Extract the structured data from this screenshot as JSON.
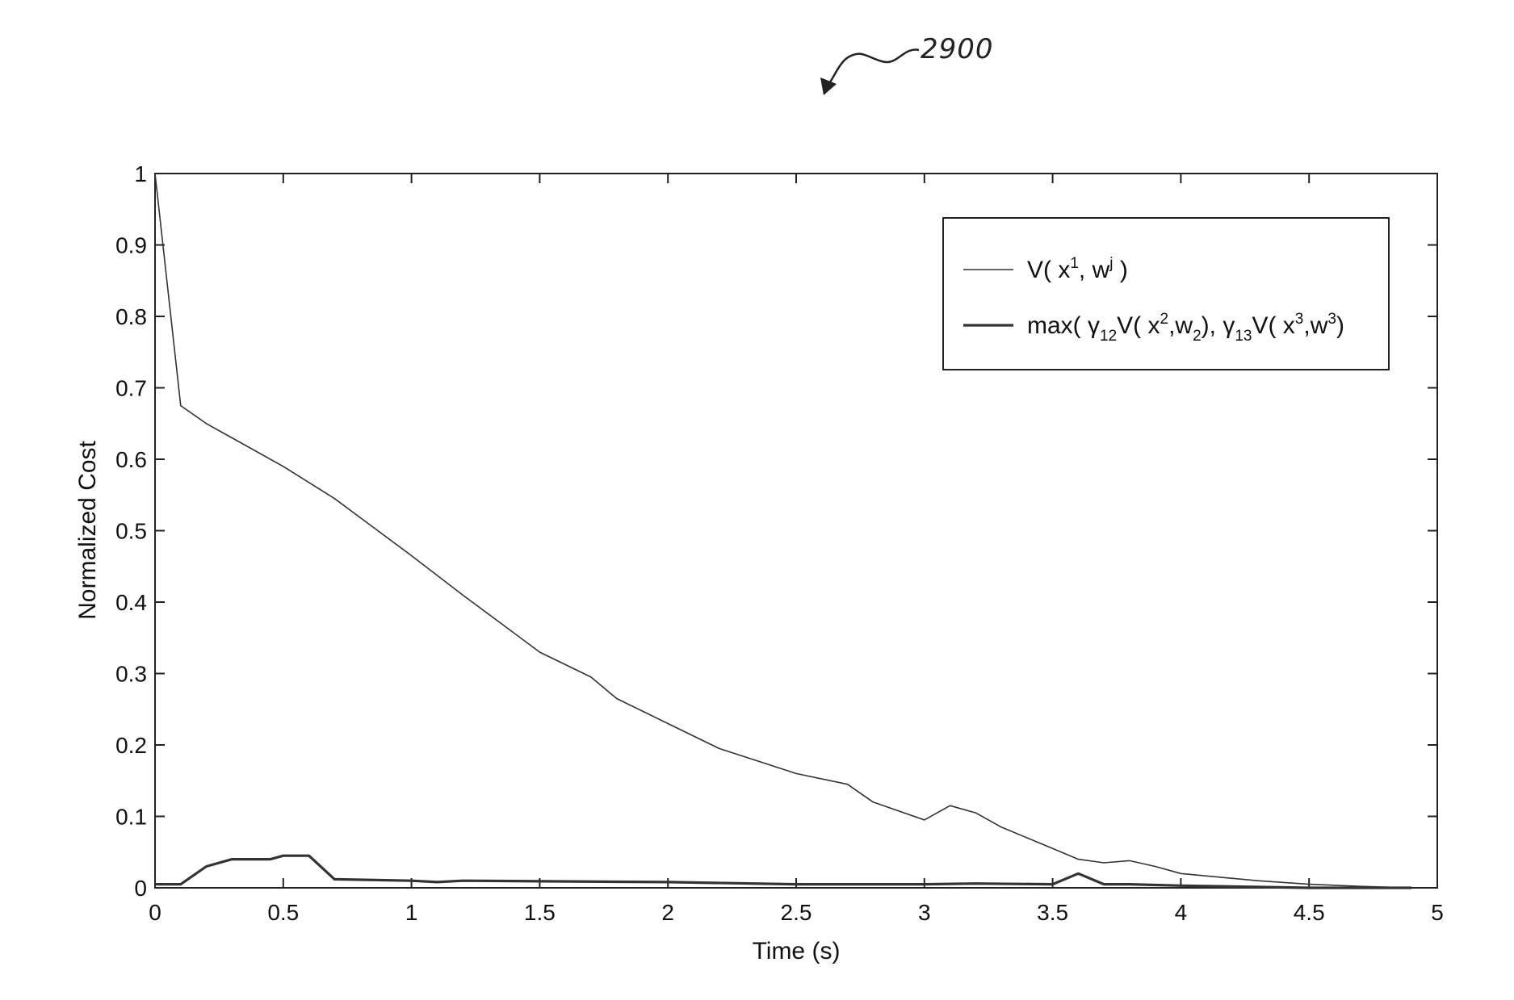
{
  "figure": {
    "reference_number": "2900"
  },
  "chart_data": {
    "type": "line",
    "title": "",
    "xlabel": "Time (s)",
    "ylabel": "Normalized Cost",
    "xlim": [
      0,
      5
    ],
    "ylim": [
      0,
      1
    ],
    "xticks": [
      0,
      0.5,
      1,
      1.5,
      2,
      2.5,
      3,
      3.5,
      4,
      4.5,
      5
    ],
    "xtick_labels": [
      "0",
      "0.5",
      "1",
      "1.5",
      "2",
      "2.5",
      "3",
      "3.5",
      "4",
      "4.5",
      "5"
    ],
    "yticks": [
      0,
      0.1,
      0.2,
      0.3,
      0.4,
      0.5,
      0.6,
      0.7,
      0.8,
      0.9,
      1
    ],
    "ytick_labels": [
      "0",
      "0.1",
      "0.2",
      "0.3",
      "0.4",
      "0.5",
      "0.6",
      "0.7",
      "0.8",
      "0.9",
      "1"
    ],
    "grid": false,
    "legend_position": "top-right",
    "series": [
      {
        "name": "V( x¹, wʲ )",
        "color": "#333333",
        "x": [
          0,
          0.1,
          0.2,
          0.3,
          0.5,
          0.7,
          1.0,
          1.2,
          1.5,
          1.7,
          1.8,
          2.0,
          2.2,
          2.5,
          2.7,
          2.8,
          3.0,
          3.1,
          3.2,
          3.3,
          3.5,
          3.6,
          3.7,
          3.8,
          3.9,
          4.0,
          4.3,
          4.5,
          4.7,
          4.9
        ],
        "y": [
          1.0,
          0.675,
          0.65,
          0.63,
          0.59,
          0.545,
          0.465,
          0.41,
          0.33,
          0.295,
          0.265,
          0.23,
          0.195,
          0.16,
          0.145,
          0.12,
          0.095,
          0.115,
          0.105,
          0.085,
          0.055,
          0.04,
          0.035,
          0.038,
          0.03,
          0.02,
          0.01,
          0.005,
          0.002,
          0.0
        ]
      },
      {
        "name": "max( γ₁₂V( x²,w₂),  γ₁₃V( x³,w³)",
        "color": "#333333",
        "x": [
          0,
          0.1,
          0.2,
          0.3,
          0.45,
          0.5,
          0.6,
          0.7,
          1.0,
          1.1,
          1.2,
          2.0,
          2.5,
          3.0,
          3.2,
          3.5,
          3.6,
          3.7,
          3.8,
          4.0,
          4.5,
          4.9
        ],
        "y": [
          0.005,
          0.005,
          0.03,
          0.04,
          0.04,
          0.045,
          0.045,
          0.012,
          0.01,
          0.008,
          0.01,
          0.008,
          0.005,
          0.005,
          0.006,
          0.005,
          0.02,
          0.005,
          0.005,
          0.003,
          0.0,
          0.0
        ]
      }
    ]
  },
  "legend": {
    "entry1": {
      "base": "V( x",
      "sup1": "1",
      "mid": ", w",
      "sup2": "j",
      "end": " )"
    },
    "entry2": {
      "p1": "max( ",
      "gamma12": "γ",
      "sub12": "12",
      "p2": "V( x",
      "sup2": "2",
      "p3": ",w",
      "subw2": "2",
      "p4": "),  ",
      "gamma13": "γ",
      "sub13": "13",
      "p5": "V( x",
      "sup3a": "3",
      "p6": ",w",
      "sup3b": "3",
      "p7": ")"
    }
  }
}
